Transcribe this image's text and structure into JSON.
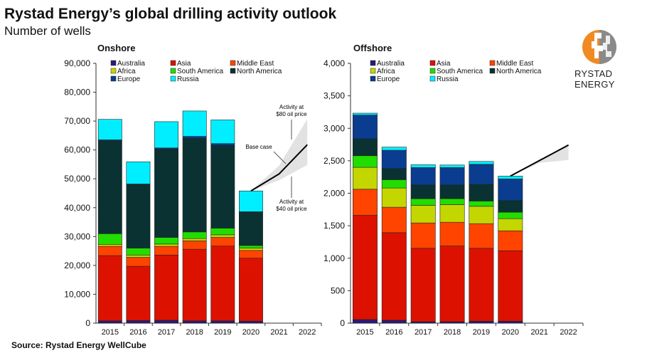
{
  "title": "Rystad Energy’s global drilling activity outlook",
  "subtitle": "Number of wells",
  "source": "Source: Rystad Energy WellCube",
  "logo_text": "RYSTAD ENERGY",
  "chart_data": [
    {
      "type": "bar",
      "stacked": true,
      "title": "Onshore",
      "ylim": [
        0,
        90000
      ],
      "yticks": [
        "0",
        "10,000",
        "20,000",
        "30,000",
        "40,000",
        "50,000",
        "60,000",
        "70,000",
        "80,000",
        "90,000"
      ],
      "categories": [
        "2015",
        "2016",
        "2017",
        "2018",
        "2019",
        "2020",
        "2021",
        "2022"
      ],
      "legend_position": "top",
      "series": [
        {
          "name": "Australia",
          "color": "#2a1a7a",
          "values": [
            800,
            900,
            1000,
            800,
            800,
            700,
            null,
            null
          ]
        },
        {
          "name": "Asia",
          "color": "#dd1100",
          "values": [
            22600,
            18800,
            22600,
            24800,
            25900,
            21800,
            null,
            null
          ]
        },
        {
          "name": "Middle East",
          "color": "#ff4400",
          "values": [
            3200,
            3100,
            3000,
            2900,
            3000,
            2700,
            null,
            null
          ]
        },
        {
          "name": "Africa",
          "color": "#c4d600",
          "values": [
            700,
            800,
            800,
            800,
            900,
            800,
            null,
            null
          ]
        },
        {
          "name": "South America",
          "color": "#22dd00",
          "values": [
            3700,
            2400,
            2300,
            2300,
            2300,
            900,
            null,
            null
          ]
        },
        {
          "name": "North America",
          "color": "#0a3232",
          "values": [
            32200,
            22000,
            30600,
            32400,
            28700,
            11500,
            null,
            null
          ]
        },
        {
          "name": "Europe",
          "color": "#0a3d8f",
          "values": [
            300,
            200,
            400,
            700,
            600,
            200,
            null,
            null
          ]
        },
        {
          "name": "Russia",
          "color": "#00eeff",
          "values": [
            7100,
            7700,
            9100,
            8800,
            8200,
            7200,
            null,
            null
          ]
        }
      ],
      "forecast": {
        "years": [
          "2020",
          "2021",
          "2022"
        ],
        "base": [
          45800,
          51700,
          61800
        ],
        "high": [
          45800,
          54600,
          70700
        ],
        "low": [
          45800,
          49500,
          54800
        ]
      },
      "annotations": {
        "high": [
          "Activity at",
          "$80 oil price"
        ],
        "base": "Base case",
        "low": [
          "Activity at",
          "$40 oil price"
        ]
      }
    },
    {
      "type": "bar",
      "stacked": true,
      "title": "Offshore",
      "ylim": [
        0,
        4000
      ],
      "yticks": [
        "0",
        "500",
        "1,000",
        "1,500",
        "2,000",
        "2,500",
        "3,000",
        "3,500",
        "4,000"
      ],
      "categories": [
        "2015",
        "2016",
        "2017",
        "2018",
        "2019",
        "2020",
        "2021",
        "2022"
      ],
      "legend_position": "top",
      "series": [
        {
          "name": "Australia",
          "color": "#2a1a7a",
          "values": [
            55,
            44,
            22,
            22,
            30,
            30,
            null,
            null
          ]
        },
        {
          "name": "Asia",
          "color": "#dd1100",
          "values": [
            1605,
            1349,
            1130,
            1166,
            1122,
            1085,
            null,
            null
          ]
        },
        {
          "name": "Middle East",
          "color": "#ff4400",
          "values": [
            402,
            392,
            391,
            366,
            380,
            307,
            null,
            null
          ]
        },
        {
          "name": "Africa",
          "color": "#c4d600",
          "values": [
            337,
            296,
            271,
            271,
            267,
            187,
            null,
            null
          ]
        },
        {
          "name": "South America",
          "color": "#22dd00",
          "values": [
            179,
            128,
            102,
            91,
            81,
            99,
            null,
            null
          ]
        },
        {
          "name": "North America",
          "color": "#0a3232",
          "values": [
            260,
            172,
            212,
            212,
            256,
            179,
            null,
            null
          ]
        },
        {
          "name": "Europe",
          "color": "#0a3d8f",
          "values": [
            366,
            281,
            267,
            267,
            310,
            333,
            null,
            null
          ]
        },
        {
          "name": "Russia",
          "color": "#00eeff",
          "values": [
            29,
            48,
            44,
            40,
            44,
            44,
            null,
            null
          ]
        }
      ],
      "forecast": {
        "years": [
          "2020",
          "2021",
          "2022"
        ],
        "base": [
          2264,
          2503,
          2742
        ],
        "high": [
          2264,
          2520,
          2742
        ],
        "low": [
          2264,
          2468,
          2512
        ]
      }
    }
  ]
}
